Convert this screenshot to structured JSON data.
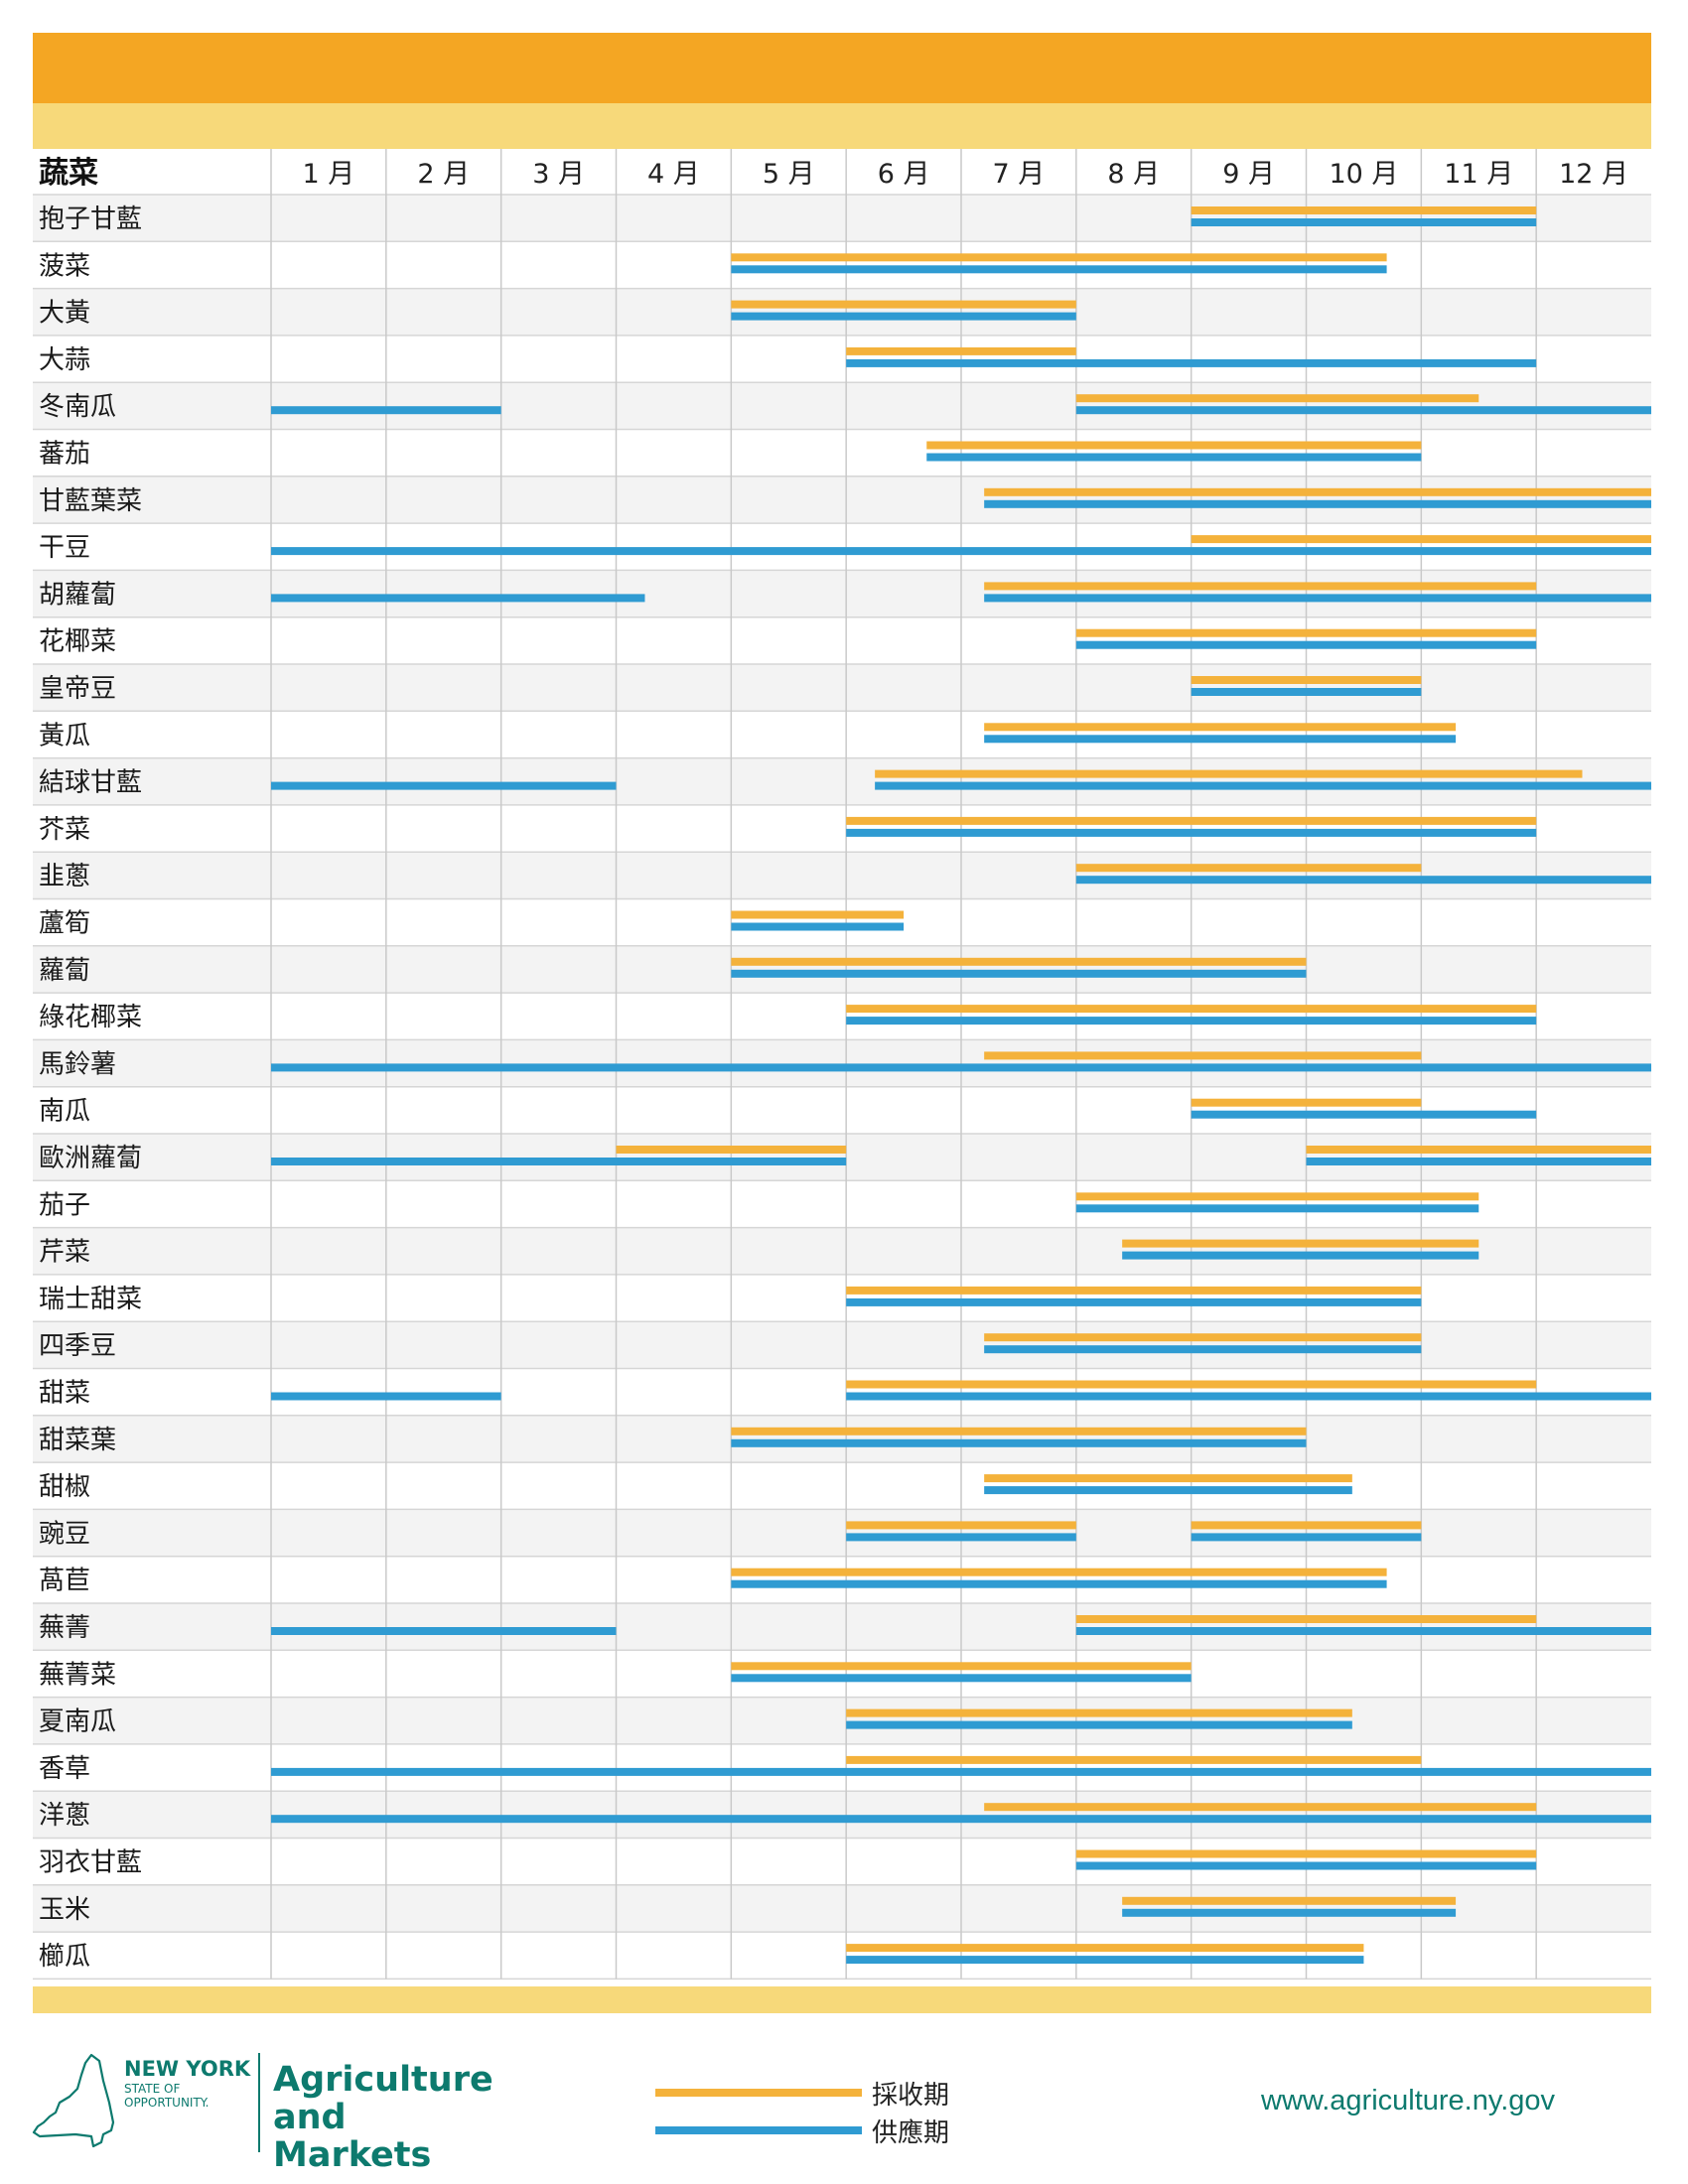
{
  "colors": {
    "header_orange": "#f4a623",
    "header_yellow": "#f7d97a",
    "harvest": "#f4b23b",
    "supply": "#2f9bd2",
    "grid": "#c9c9c9",
    "row_alt": "#f3f3f3",
    "brand_teal": "#0d7a6e"
  },
  "chart_data": {
    "type": "gantt",
    "category_header": "蔬菜",
    "months": [
      "1 月",
      "2 月",
      "3 月",
      "4 月",
      "5 月",
      "6 月",
      "7 月",
      "8 月",
      "9 月",
      "10 月",
      "11 月",
      "12 月"
    ],
    "x_unit": "month",
    "x_range": [
      1,
      13
    ],
    "series_legend": [
      {
        "name": "採收期",
        "key": "harvest",
        "color": "#f4b23b"
      },
      {
        "name": "供應期",
        "key": "supply",
        "color": "#2f9bd2"
      }
    ],
    "rows": [
      {
        "name": "抱子甘藍",
        "harvest": [
          [
            9,
            12
          ]
        ],
        "supply": [
          [
            9,
            12
          ]
        ]
      },
      {
        "name": "菠菜",
        "harvest": [
          [
            5,
            10.7
          ]
        ],
        "supply": [
          [
            5,
            10.7
          ]
        ]
      },
      {
        "name": "大黃",
        "harvest": [
          [
            5,
            8
          ]
        ],
        "supply": [
          [
            5,
            8
          ]
        ]
      },
      {
        "name": "大蒜",
        "harvest": [
          [
            6,
            8
          ]
        ],
        "supply": [
          [
            6,
            12
          ]
        ]
      },
      {
        "name": "冬南瓜",
        "harvest": [
          [
            8,
            11.5
          ]
        ],
        "supply": [
          [
            1,
            3
          ],
          [
            8,
            13
          ]
        ]
      },
      {
        "name": "蕃茄",
        "harvest": [
          [
            6.7,
            11
          ]
        ],
        "supply": [
          [
            6.7,
            11
          ]
        ]
      },
      {
        "name": "甘藍葉菜",
        "harvest": [
          [
            7.2,
            13
          ]
        ],
        "supply": [
          [
            7.2,
            13
          ]
        ]
      },
      {
        "name": "干豆",
        "harvest": [
          [
            9,
            13
          ]
        ],
        "supply": [
          [
            1,
            13
          ]
        ]
      },
      {
        "name": "胡蘿蔔",
        "harvest": [
          [
            7.2,
            12
          ]
        ],
        "supply": [
          [
            1,
            4.25
          ],
          [
            7.2,
            13
          ]
        ]
      },
      {
        "name": "花椰菜",
        "harvest": [
          [
            8,
            12
          ]
        ],
        "supply": [
          [
            8,
            12
          ]
        ]
      },
      {
        "name": "皇帝豆",
        "harvest": [
          [
            9,
            11
          ]
        ],
        "supply": [
          [
            9,
            11
          ]
        ]
      },
      {
        "name": "黃瓜",
        "harvest": [
          [
            7.2,
            11.3
          ]
        ],
        "supply": [
          [
            7.2,
            11.3
          ]
        ]
      },
      {
        "name": "結球甘藍",
        "harvest": [
          [
            6.25,
            12.4
          ]
        ],
        "supply": [
          [
            1,
            4
          ],
          [
            6.25,
            13
          ]
        ]
      },
      {
        "name": "芥菜",
        "harvest": [
          [
            6,
            12
          ]
        ],
        "supply": [
          [
            6,
            12
          ]
        ]
      },
      {
        "name": "韭蔥",
        "harvest": [
          [
            8,
            11
          ]
        ],
        "supply": [
          [
            8,
            13
          ]
        ]
      },
      {
        "name": "蘆筍",
        "harvest": [
          [
            5,
            6.5
          ]
        ],
        "supply": [
          [
            5,
            6.5
          ]
        ]
      },
      {
        "name": "蘿蔔",
        "harvest": [
          [
            5,
            10
          ]
        ],
        "supply": [
          [
            5,
            10
          ]
        ]
      },
      {
        "name": "綠花椰菜",
        "harvest": [
          [
            6,
            12
          ]
        ],
        "supply": [
          [
            6,
            12
          ]
        ]
      },
      {
        "name": "馬鈴薯",
        "harvest": [
          [
            7.2,
            11
          ]
        ],
        "supply": [
          [
            1,
            13
          ]
        ]
      },
      {
        "name": "南瓜",
        "harvest": [
          [
            9,
            11
          ]
        ],
        "supply": [
          [
            9,
            12
          ]
        ]
      },
      {
        "name": "歐洲蘿蔔",
        "harvest": [
          [
            4,
            6
          ],
          [
            10,
            13
          ]
        ],
        "supply": [
          [
            1,
            6
          ],
          [
            10,
            13
          ]
        ]
      },
      {
        "name": "茄子",
        "harvest": [
          [
            8,
            11.5
          ]
        ],
        "supply": [
          [
            8,
            11.5
          ]
        ]
      },
      {
        "name": "芹菜",
        "harvest": [
          [
            8.4,
            11.5
          ]
        ],
        "supply": [
          [
            8.4,
            11.5
          ]
        ]
      },
      {
        "name": "瑞士甜菜",
        "harvest": [
          [
            6,
            11
          ]
        ],
        "supply": [
          [
            6,
            11
          ]
        ]
      },
      {
        "name": "四季豆",
        "harvest": [
          [
            7.2,
            11
          ]
        ],
        "supply": [
          [
            7.2,
            11
          ]
        ]
      },
      {
        "name": "甜菜",
        "harvest": [
          [
            6,
            12
          ]
        ],
        "supply": [
          [
            1,
            3
          ],
          [
            6,
            13
          ]
        ]
      },
      {
        "name": "甜菜葉",
        "harvest": [
          [
            5,
            10
          ]
        ],
        "supply": [
          [
            5,
            10
          ]
        ]
      },
      {
        "name": "甜椒",
        "harvest": [
          [
            7.2,
            10.4
          ]
        ],
        "supply": [
          [
            7.2,
            10.4
          ]
        ]
      },
      {
        "name": "豌豆",
        "harvest": [
          [
            6,
            8
          ],
          [
            9,
            11
          ]
        ],
        "supply": [
          [
            6,
            8
          ],
          [
            9,
            11
          ]
        ]
      },
      {
        "name": "萵苣",
        "harvest": [
          [
            5,
            10.7
          ]
        ],
        "supply": [
          [
            5,
            10.7
          ]
        ]
      },
      {
        "name": "蕪菁",
        "harvest": [
          [
            8,
            12
          ]
        ],
        "supply": [
          [
            1,
            4
          ],
          [
            8,
            13
          ]
        ]
      },
      {
        "name": "蕪菁菜",
        "harvest": [
          [
            5,
            9
          ]
        ],
        "supply": [
          [
            5,
            9
          ]
        ]
      },
      {
        "name": "夏南瓜",
        "harvest": [
          [
            6,
            10.4
          ]
        ],
        "supply": [
          [
            6,
            10.4
          ]
        ]
      },
      {
        "name": "香草",
        "harvest": [
          [
            6,
            11
          ]
        ],
        "supply": [
          [
            1,
            13
          ]
        ]
      },
      {
        "name": "洋蔥",
        "harvest": [
          [
            7.2,
            12
          ]
        ],
        "supply": [
          [
            1,
            13
          ]
        ]
      },
      {
        "name": "羽衣甘藍",
        "harvest": [
          [
            8,
            12
          ]
        ],
        "supply": [
          [
            8,
            12
          ]
        ]
      },
      {
        "name": "玉米",
        "harvest": [
          [
            8.4,
            11.3
          ]
        ],
        "supply": [
          [
            8.4,
            11.3
          ]
        ]
      },
      {
        "name": "櫛瓜",
        "harvest": [
          [
            6,
            10.5
          ]
        ],
        "supply": [
          [
            6,
            10.5
          ]
        ]
      }
    ]
  },
  "footer": {
    "logo": {
      "name": "NEW YORK",
      "sub1": "STATE OF",
      "sub2": "OPPORTUNITY.",
      "agency_line1": "Agriculture",
      "agency_line2": "and Markets"
    },
    "legend": {
      "harvest_label": "採收期",
      "supply_label": "供應期"
    },
    "website": "www.agriculture.ny.gov"
  }
}
